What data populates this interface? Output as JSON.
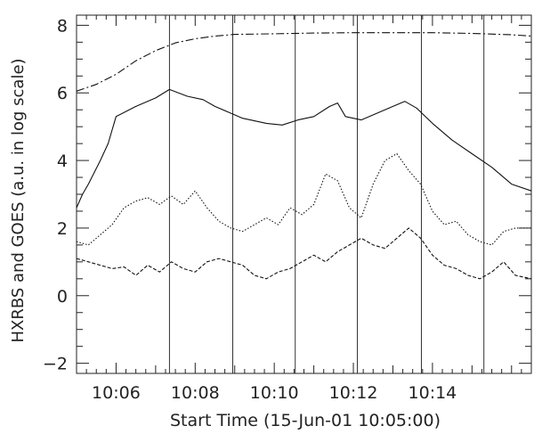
{
  "chart_data": {
    "type": "line",
    "title": "",
    "xlabel": "Start Time (15-Jun-01 10:05:00)",
    "ylabel": "HXRBS and GOES (a.u. in log scale)",
    "xlim": [
      0,
      11.5
    ],
    "ylim": [
      -2.3,
      8.3
    ],
    "grid": false,
    "x_ticks": [
      {
        "x": 1,
        "label": "10:06"
      },
      {
        "x": 3,
        "label": "10:08"
      },
      {
        "x": 5,
        "label": "10:10"
      },
      {
        "x": 7,
        "label": "10:12"
      },
      {
        "x": 9,
        "label": "10:14"
      }
    ],
    "y_ticks": [
      {
        "y": -2,
        "label": "−2"
      },
      {
        "y": 0,
        "label": "0"
      },
      {
        "y": 2,
        "label": "2"
      },
      {
        "y": 4,
        "label": "4"
      },
      {
        "y": 6,
        "label": "6"
      },
      {
        "y": 8,
        "label": "8"
      }
    ],
    "vertical_lines_minutes": [
      2.35,
      3.95,
      5.53,
      7.1,
      8.72,
      10.3
    ],
    "series": [
      {
        "style": "dash-dot",
        "x": [
          0,
          0.5,
          1.0,
          1.5,
          2.0,
          2.5,
          3.0,
          3.5,
          4.0,
          5.0,
          6.0,
          7.0,
          8.0,
          9.0,
          10.0,
          11.0,
          11.5
        ],
        "y": [
          6.05,
          6.25,
          6.55,
          6.95,
          7.25,
          7.48,
          7.6,
          7.68,
          7.73,
          7.75,
          7.77,
          7.78,
          7.78,
          7.78,
          7.76,
          7.72,
          7.68
        ]
      },
      {
        "style": "solid",
        "x": [
          0,
          0.15,
          0.3,
          0.6,
          0.8,
          1.0,
          1.5,
          2.0,
          2.35,
          2.8,
          3.2,
          3.5,
          3.8,
          4.2,
          4.8,
          5.2,
          5.6,
          6.0,
          6.4,
          6.6,
          6.8,
          7.2,
          7.6,
          8.0,
          8.3,
          8.6,
          9.0,
          9.5,
          10.0,
          10.5,
          11.0,
          11.5
        ],
        "y": [
          2.6,
          3.0,
          3.3,
          4.0,
          4.5,
          5.3,
          5.6,
          5.85,
          6.1,
          5.9,
          5.8,
          5.6,
          5.45,
          5.25,
          5.1,
          5.05,
          5.2,
          5.3,
          5.6,
          5.7,
          5.3,
          5.2,
          5.4,
          5.6,
          5.75,
          5.55,
          5.1,
          4.6,
          4.2,
          3.8,
          3.3,
          3.1
        ]
      },
      {
        "style": "dotted",
        "x": [
          0,
          0.3,
          0.6,
          0.9,
          1.2,
          1.5,
          1.8,
          2.1,
          2.4,
          2.7,
          3.0,
          3.3,
          3.6,
          3.9,
          4.2,
          4.5,
          4.8,
          5.1,
          5.4,
          5.7,
          6.0,
          6.3,
          6.6,
          6.9,
          7.2,
          7.5,
          7.8,
          8.1,
          8.4,
          8.7,
          9.0,
          9.3,
          9.6,
          9.9,
          10.2,
          10.5,
          10.8,
          11.1,
          11.5
        ],
        "y": [
          1.6,
          1.5,
          1.8,
          2.1,
          2.6,
          2.8,
          2.9,
          2.7,
          2.95,
          2.7,
          3.1,
          2.6,
          2.2,
          2.0,
          1.9,
          2.1,
          2.3,
          2.1,
          2.6,
          2.4,
          2.7,
          3.6,
          3.4,
          2.6,
          2.3,
          3.3,
          4.0,
          4.2,
          3.7,
          3.3,
          2.5,
          2.1,
          2.2,
          1.8,
          1.6,
          1.5,
          1.9,
          2.0,
          2.0
        ]
      },
      {
        "style": "dashed",
        "x": [
          0,
          0.3,
          0.6,
          0.9,
          1.2,
          1.5,
          1.8,
          2.1,
          2.4,
          2.7,
          3.0,
          3.3,
          3.6,
          3.9,
          4.2,
          4.5,
          4.8,
          5.1,
          5.4,
          5.7,
          6.0,
          6.3,
          6.6,
          6.9,
          7.2,
          7.5,
          7.8,
          8.1,
          8.4,
          8.7,
          9.0,
          9.3,
          9.6,
          9.9,
          10.2,
          10.5,
          10.8,
          11.1,
          11.5
        ],
        "y": [
          1.1,
          1.0,
          0.9,
          0.8,
          0.85,
          0.6,
          0.9,
          0.7,
          1.0,
          0.8,
          0.7,
          1.0,
          1.1,
          1.0,
          0.9,
          0.6,
          0.5,
          0.7,
          0.8,
          1.0,
          1.2,
          1.0,
          1.3,
          1.5,
          1.7,
          1.5,
          1.4,
          1.7,
          2.0,
          1.7,
          1.2,
          0.9,
          0.8,
          0.6,
          0.5,
          0.7,
          1.0,
          0.6,
          0.5
        ]
      }
    ]
  }
}
